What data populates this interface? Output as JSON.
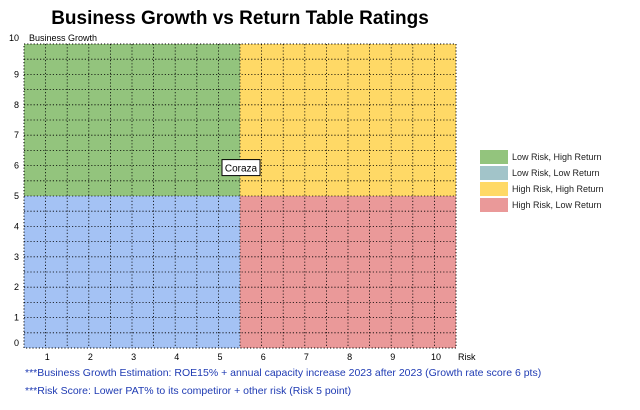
{
  "chart_data": {
    "type": "scatter",
    "title": "Business Growth vs Return Table Ratings",
    "xlabel": "Risk",
    "ylabel": "Business Growth",
    "xlim": [
      0,
      10
    ],
    "ylim": [
      0,
      10
    ],
    "x_ticks": [
      1,
      2,
      3,
      4,
      5,
      6,
      7,
      8,
      9,
      10
    ],
    "y_ticks": [
      0,
      1,
      2,
      3,
      4,
      5,
      6,
      7,
      8,
      9,
      10
    ],
    "grid": true,
    "quadrants": [
      {
        "name": "Low Risk, High Return",
        "x": [
          0,
          5
        ],
        "y": [
          5,
          10
        ],
        "color": "#93c47d"
      },
      {
        "name": "Low Risk, Low Return",
        "x": [
          0,
          5
        ],
        "y": [
          0,
          5
        ],
        "color": "#a4c2f4"
      },
      {
        "name": "High Risk, High Return",
        "x": [
          5,
          10
        ],
        "y": [
          5,
          10
        ],
        "color": "#ffd966"
      },
      {
        "name": "High Risk, Low Return",
        "x": [
          5,
          10
        ],
        "y": [
          0,
          5
        ],
        "color": "#ea9999"
      }
    ],
    "points": [
      {
        "label": "Coraza",
        "x": 5,
        "y": 6
      }
    ],
    "legend": [
      {
        "label": "Low Risk, High Return",
        "color": "#93c47d"
      },
      {
        "label": "Low Risk, Low Return",
        "color": "#a2c4c9"
      },
      {
        "label": "High Risk, High Return",
        "color": "#ffd966"
      },
      {
        "label": "High Risk, Low Return",
        "color": "#ea9999"
      }
    ],
    "legend_position": "right"
  },
  "notes": [
    "***Business Growth Estimation: ROE15% + annual capacity increase 2023 after 2023 (Growth rate score 6 pts)",
    "***Risk Score: Lower PAT% to its competiror + other risk (Risk 5 point)"
  ]
}
